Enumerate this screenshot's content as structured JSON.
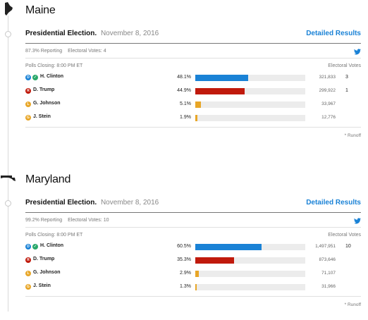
{
  "colors": {
    "dem": "#1a82d6",
    "rep": "#c01a0c",
    "lib": "#e8a627",
    "grn": "#e8a627",
    "link": "#1a82d6",
    "check": "#29a86a"
  },
  "states": [
    {
      "name": "Maine",
      "election_title": "Presidential Election.",
      "date": "November 8, 2016",
      "detailed_label": "Detailed Results",
      "reporting": "87.3% Reporting",
      "electoral_votes": "Electoral Votes: 4",
      "polls_closing": "Polls Closing: 8:00 PM ET",
      "ev_header": "Electoral Votes",
      "runoff": "* Runoff",
      "candidates": [
        {
          "badge": "D",
          "party": "dem",
          "winner": true,
          "name": "H. Clinton",
          "pct_label": "48.1%",
          "pct": 48.1,
          "votes": "321,833",
          "ev": "3"
        },
        {
          "badge": "R",
          "party": "rep",
          "winner": false,
          "name": "D. Trump",
          "pct_label": "44.9%",
          "pct": 44.9,
          "votes": "299,922",
          "ev": "1"
        },
        {
          "badge": "L",
          "party": "lib",
          "winner": false,
          "name": "G. Johnson",
          "pct_label": "5.1%",
          "pct": 5.1,
          "votes": "33,967",
          "ev": ""
        },
        {
          "badge": "G",
          "party": "grn",
          "winner": false,
          "name": "J. Stein",
          "pct_label": "1.9%",
          "pct": 1.9,
          "votes": "12,776",
          "ev": ""
        }
      ]
    },
    {
      "name": "Maryland",
      "election_title": "Presidential Election.",
      "date": "November 8, 2016",
      "detailed_label": "Detailed Results",
      "reporting": "99.2% Reporting",
      "electoral_votes": "Electoral Votes: 10",
      "polls_closing": "Polls Closing: 8:00 PM ET",
      "ev_header": "Electoral Votes",
      "runoff": "* Runoff",
      "candidates": [
        {
          "badge": "D",
          "party": "dem",
          "winner": true,
          "name": "H. Clinton",
          "pct_label": "60.5%",
          "pct": 60.5,
          "votes": "1,497,951",
          "ev": "10"
        },
        {
          "badge": "R",
          "party": "rep",
          "winner": false,
          "name": "D. Trump",
          "pct_label": "35.3%",
          "pct": 35.3,
          "votes": "873,646",
          "ev": ""
        },
        {
          "badge": "L",
          "party": "lib",
          "winner": false,
          "name": "G. Johnson",
          "pct_label": "2.9%",
          "pct": 2.9,
          "votes": "71,107",
          "ev": ""
        },
        {
          "badge": "G",
          "party": "grn",
          "winner": false,
          "name": "J. Stein",
          "pct_label": "1.3%",
          "pct": 1.3,
          "votes": "31,966",
          "ev": ""
        }
      ]
    }
  ]
}
